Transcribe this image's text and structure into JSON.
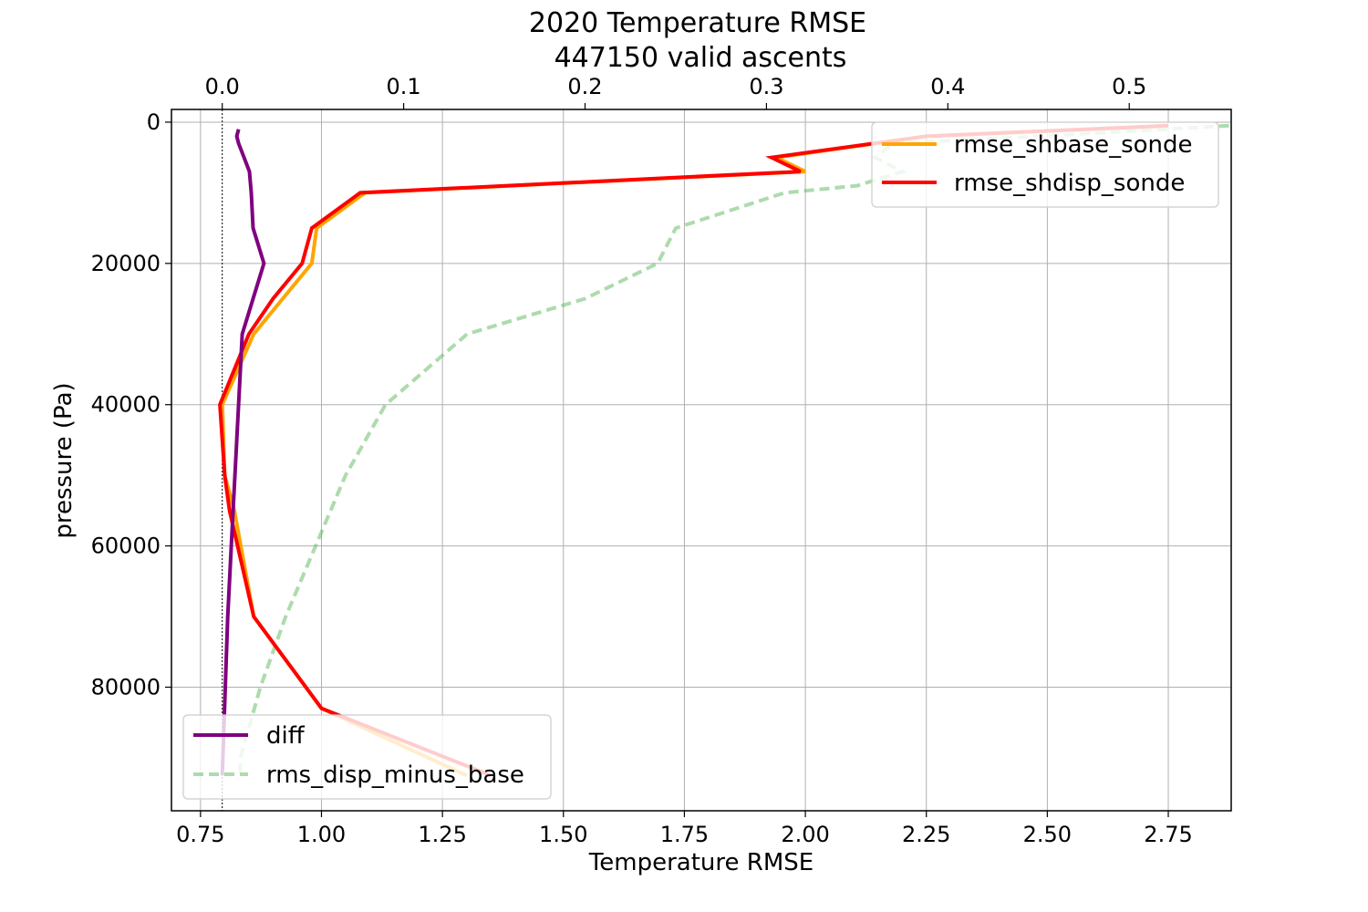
{
  "chart_data": {
    "type": "line",
    "title_line1": "2020 Temperature RMSE",
    "title_line2": "447150 valid ascents",
    "xlabel": "Temperature RMSE",
    "ylabel": "pressure (Pa)",
    "y_inverted": true,
    "ylim": [
      -1800,
      97500
    ],
    "xlim_bottom": [
      0.69,
      2.88
    ],
    "xlim_top": [
      -0.028,
      0.5562
    ],
    "x_ticks_bottom": [
      "0.75",
      "1.00",
      "1.25",
      "1.50",
      "1.75",
      "2.00",
      "2.25",
      "2.50",
      "2.75"
    ],
    "x_ticks_top": [
      "0.0",
      "0.1",
      "0.2",
      "0.3",
      "0.4",
      "0.5"
    ],
    "y_ticks": [
      "0",
      "20000",
      "40000",
      "60000",
      "80000"
    ],
    "grid": true,
    "zero_reference_line": 0.0,
    "legend_upper": {
      "placement": "top-right",
      "entries": [
        "rmse_shbase_sonde",
        "rmse_shdisp_sonde"
      ]
    },
    "legend_lower": {
      "placement": "bottom-left",
      "entries": [
        "diff",
        "rms_disp_minus_base"
      ]
    },
    "series": [
      {
        "name": "rmse_shbase_sonde",
        "axis": "bottom",
        "color": "#ffa500",
        "style": "solid",
        "x": [
          2.75,
          2.25,
          1.94,
          2.0,
          1.09,
          0.99,
          0.98,
          0.92,
          0.86,
          0.795,
          0.8,
          0.82,
          0.86,
          1.0,
          1.3
        ],
        "y": [
          500,
          2000,
          5000,
          7000,
          10000,
          15000,
          20000,
          25000,
          30000,
          40000,
          50000,
          55000,
          70000,
          83000,
          92500
        ]
      },
      {
        "name": "rmse_shdisp_sonde",
        "axis": "bottom",
        "color": "#ff0000",
        "style": "solid",
        "x": [
          2.75,
          2.25,
          1.93,
          1.99,
          1.08,
          0.98,
          0.96,
          0.9,
          0.85,
          0.79,
          0.8,
          0.81,
          0.86,
          1.0,
          1.35
        ],
        "y": [
          500,
          2000,
          5000,
          7000,
          10000,
          15000,
          20000,
          25000,
          30000,
          40000,
          50000,
          55000,
          70000,
          83000,
          92500
        ]
      },
      {
        "name": "diff",
        "axis": "top",
        "color": "#800080",
        "style": "solid",
        "x": [
          0.009,
          0.008,
          0.009,
          0.012,
          0.015,
          0.016,
          0.017,
          0.023,
          0.017,
          0.011,
          0.009,
          0.007,
          0.005,
          0.003,
          0.001,
          0.0
        ],
        "y": [
          1000,
          2000,
          3000,
          5000,
          7000,
          10000,
          15000,
          20000,
          25000,
          30000,
          40000,
          50000,
          60000,
          70000,
          85000,
          92500
        ]
      },
      {
        "name": "rms_disp_minus_base",
        "axis": "top",
        "color": "#5cb85c",
        "style": "dashed",
        "x": [
          0.555,
          0.45,
          0.37,
          0.36,
          0.375,
          0.35,
          0.31,
          0.25,
          0.24,
          0.2,
          0.135,
          0.09,
          0.068,
          0.035,
          0.021,
          0.01,
          0.01
        ],
        "y": [
          500,
          2000,
          3000,
          5000,
          7000,
          9000,
          10000,
          15000,
          20000,
          25000,
          30000,
          40000,
          50000,
          70000,
          80000,
          90000,
          92500
        ]
      }
    ]
  }
}
